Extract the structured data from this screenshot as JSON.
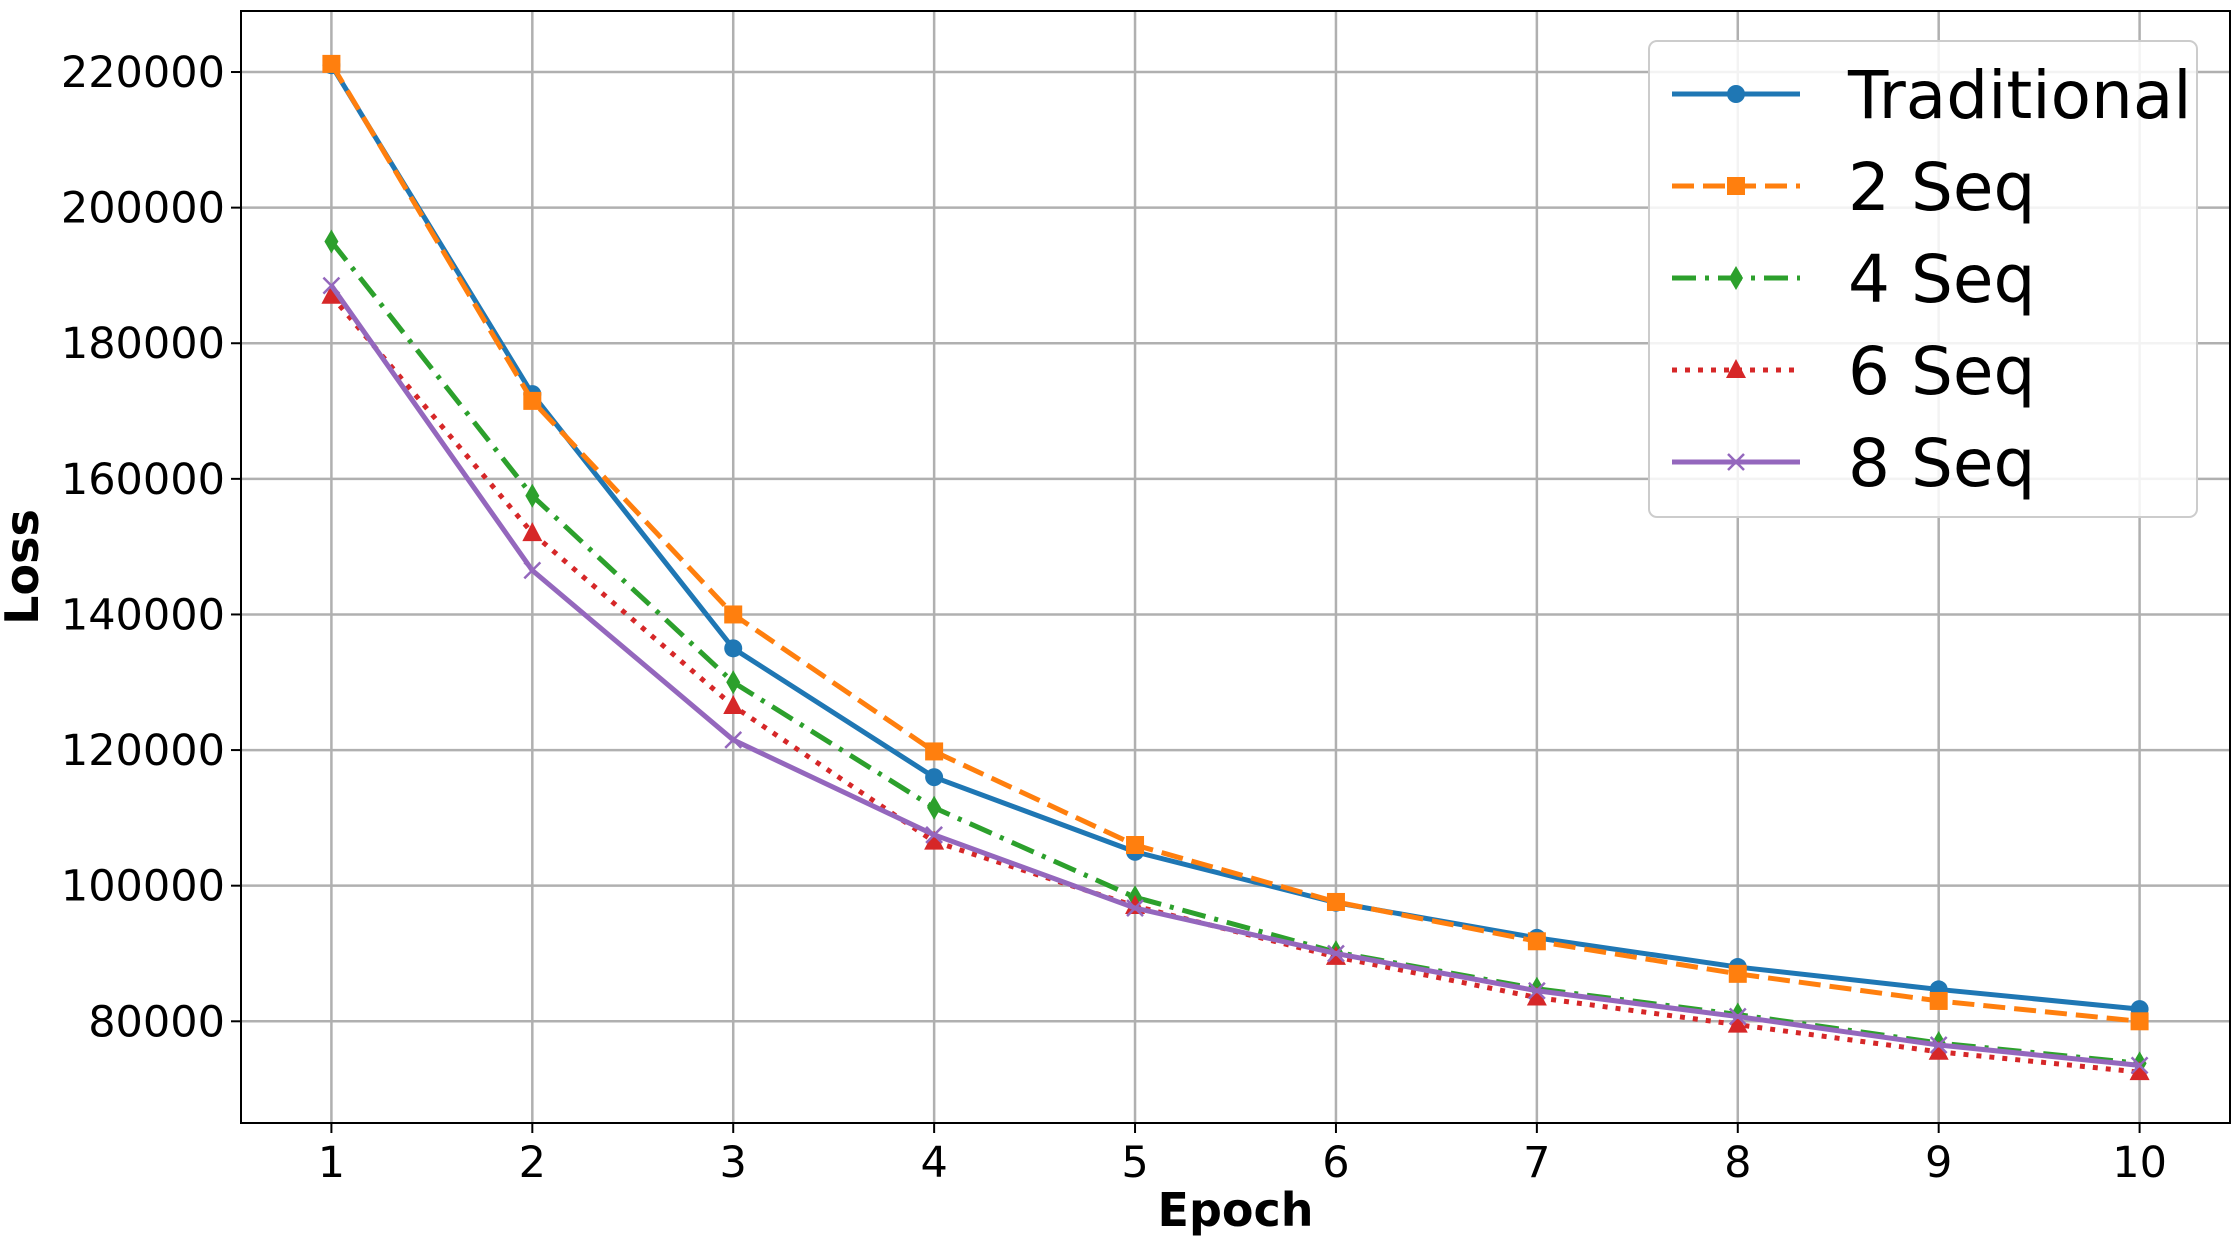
{
  "chart_data": {
    "type": "line",
    "title": "",
    "xlabel": "Epoch",
    "ylabel": "Loss",
    "x": [
      1,
      2,
      3,
      4,
      5,
      6,
      7,
      8,
      9,
      10
    ],
    "xlim": [
      0.55,
      10.45
    ],
    "ylim": [
      65000,
      229000
    ],
    "xticks": [
      "1",
      "2",
      "3",
      "4",
      "5",
      "6",
      "7",
      "8",
      "9",
      "10"
    ],
    "yticks": [
      80000,
      100000,
      120000,
      140000,
      160000,
      180000,
      200000,
      220000
    ],
    "ytick_labels": [
      "80000",
      "100000",
      "120000",
      "140000",
      "160000",
      "180000",
      "200000",
      "220000"
    ],
    "grid": true,
    "legend_position": "upper right",
    "series": [
      {
        "name": "Traditional",
        "color": "#1f77b4",
        "linestyle": "solid",
        "marker": "circle",
        "values": [
          221000,
          172500,
          135000,
          116000,
          105000,
          97500,
          92300,
          88000,
          84700,
          81800
        ]
      },
      {
        "name": "2 Seq",
        "color": "#ff7f0e",
        "linestyle": "dashed",
        "marker": "square",
        "values": [
          221200,
          171500,
          140000,
          119800,
          106000,
          97600,
          91800,
          87000,
          83000,
          80000
        ]
      },
      {
        "name": "4 Seq",
        "color": "#2ca02c",
        "linestyle": "dashdot",
        "marker": "thin_diamond",
        "values": [
          195000,
          157500,
          130000,
          111500,
          98300,
          90200,
          84800,
          81000,
          76800,
          73800
        ]
      },
      {
        "name": "6 Seq",
        "color": "#d62728",
        "linestyle": "dotted",
        "marker": "triangle",
        "values": [
          187000,
          152000,
          126500,
          106500,
          97000,
          89500,
          83500,
          79500,
          75500,
          72500
        ]
      },
      {
        "name": "8 Seq",
        "color": "#9467bd",
        "linestyle": "solid",
        "marker": "x",
        "values": [
          188500,
          146500,
          121500,
          107500,
          96700,
          90000,
          84500,
          80700,
          76500,
          73500
        ]
      }
    ]
  }
}
